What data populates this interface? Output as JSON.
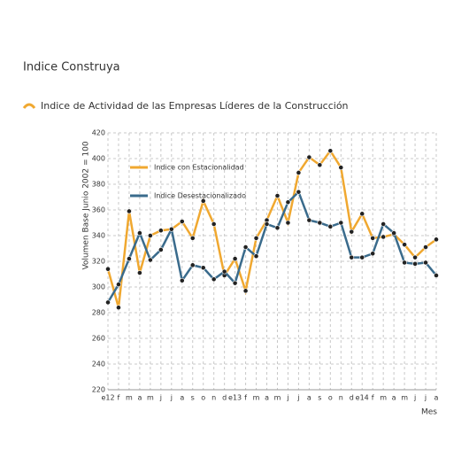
{
  "chart_data": {
    "type": "line",
    "title": "Indice Construya",
    "subtitle": "Indice de Actividad de las Empresas Líderes de la Construcción",
    "y_label": "Volumen Base Junio 2002 = 100",
    "x_label": "Mes",
    "categories": [
      "e12",
      "f",
      "m",
      "a",
      "m",
      "j",
      "j",
      "a",
      "s",
      "o",
      "n",
      "d",
      "e13",
      "f",
      "m",
      "a",
      "m",
      "j",
      "j",
      "a",
      "s",
      "o",
      "n",
      "d",
      "e14",
      "f",
      "m",
      "a",
      "m",
      "j",
      "j",
      "a"
    ],
    "series": [
      {
        "name": "Indice con Estacionalidad",
        "color": "#f0a830",
        "values": [
          314,
          284,
          359,
          311,
          340,
          344,
          345,
          351,
          338,
          367,
          349,
          309,
          322,
          297,
          338,
          352,
          371,
          350,
          389,
          401,
          395,
          406,
          393,
          343,
          357,
          338,
          339,
          341,
          333,
          323,
          331,
          337
        ]
      },
      {
        "name": "Indice Desestacionalizado",
        "color": "#3a6b8c",
        "values": [
          288,
          302,
          322,
          342,
          321,
          329,
          345,
          305,
          317,
          315,
          306,
          312,
          303,
          331,
          324,
          349,
          346,
          366,
          374,
          352,
          350,
          347,
          350,
          323,
          323,
          326,
          349,
          342,
          319,
          318,
          319,
          309
        ]
      }
    ],
    "ylim": [
      220,
      420
    ],
    "yticks": [
      220,
      240,
      260,
      280,
      300,
      320,
      340,
      360,
      380,
      400,
      420
    ],
    "grid": true,
    "legend": "upper left"
  }
}
